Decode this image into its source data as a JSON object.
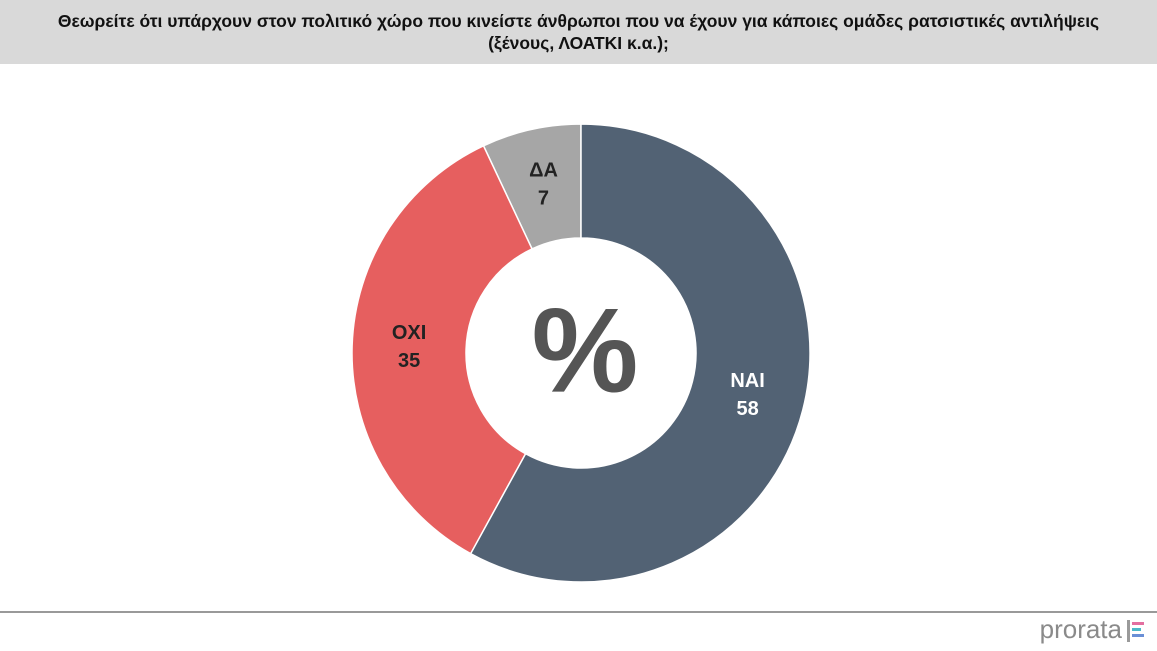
{
  "chart_data": {
    "type": "donut",
    "title": "Θεωρείτε ότι υπάρχουν στον πολιτικό χώρο που κινείστε άνθρωποι που να έχουν  για κάποιες ομάδες ρατσιστικές αντιλήψεις (ξένους, ΛΟΑΤΚΙ κ.α.);",
    "categories": [
      "ΝΑΙ",
      "ΟΧΙ",
      "ΔΑ"
    ],
    "values": [
      58,
      35,
      7
    ],
    "colors": [
      "#526274",
      "#e65f5f",
      "#a6a6a6"
    ],
    "center_label": "%"
  },
  "footer": {
    "logo": "prorata"
  }
}
